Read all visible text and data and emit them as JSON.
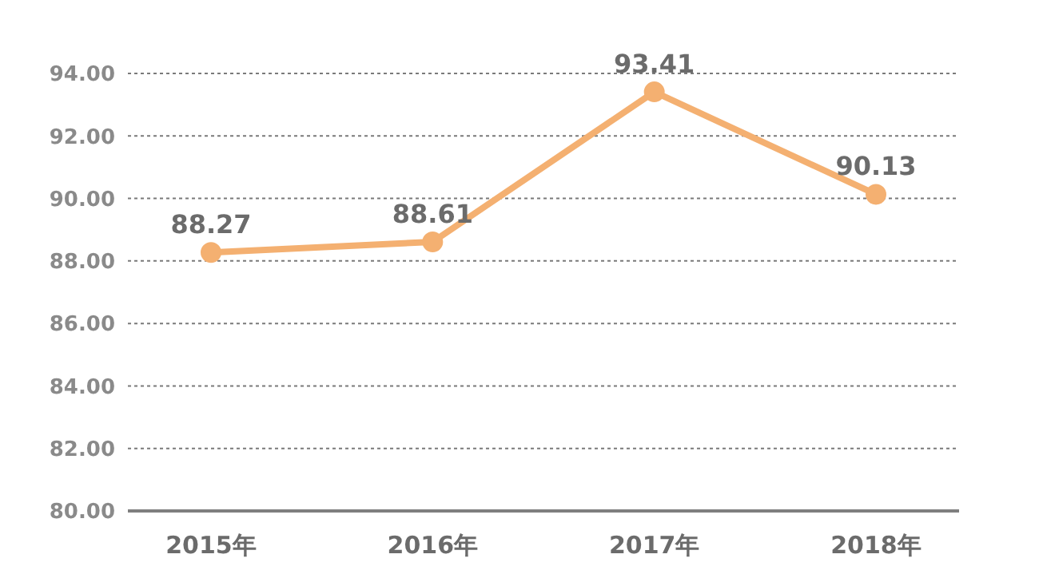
{
  "chart_data": {
    "type": "line",
    "categories": [
      "2015年",
      "2016年",
      "2017年",
      "2018年"
    ],
    "series": [
      {
        "color": "#f4b071",
        "values": [
          88.27,
          88.61,
          93.41,
          90.13
        ]
      }
    ],
    "ylim": [
      80,
      94
    ],
    "yticks": [
      {
        "value": 80,
        "label": "80.00"
      },
      {
        "value": 82,
        "label": "82.00"
      },
      {
        "value": 84,
        "label": "84.00"
      },
      {
        "value": 86,
        "label": "86.00"
      },
      {
        "value": 88,
        "label": "88.00"
      },
      {
        "value": 90,
        "label": "90.00"
      },
      {
        "value": 92,
        "label": "92.00"
      },
      {
        "value": 94,
        "label": "94.00"
      }
    ],
    "grid": "y",
    "legend": false,
    "marker": "circle",
    "line_style": "solid",
    "data_labels": true
  }
}
